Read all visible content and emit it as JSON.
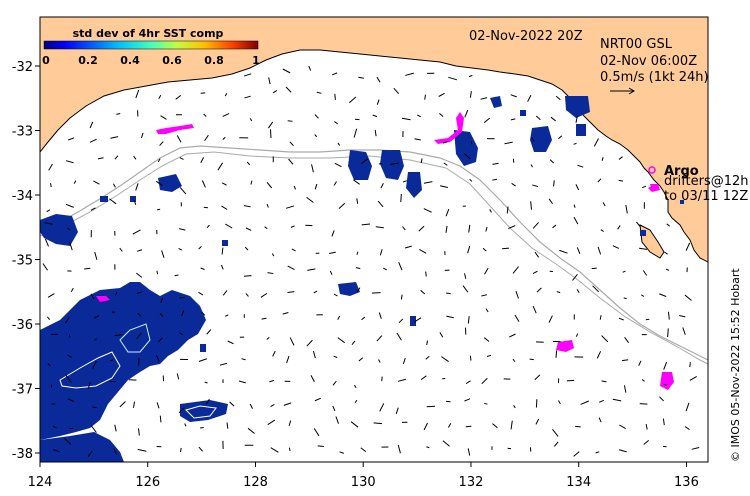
{
  "colorbar": {
    "title": "std dev of 4hr SST comp",
    "ticks": [
      "0",
      "0.2",
      "0.4",
      "0.6",
      "0.8",
      "1"
    ],
    "colors": [
      "#000080",
      "#0000ff",
      "#0080ff",
      "#00ffff",
      "#80ff80",
      "#ffff00",
      "#ff8000",
      "#ff0000",
      "#800000"
    ]
  },
  "header": {
    "date": "02-Nov-2022 20Z",
    "product": "NRT00 GSL",
    "time": "02-Nov 06:00Z",
    "scale": "0.5m/s (1kt 24h)"
  },
  "legend": {
    "argo": "Argo",
    "drifters_line1": "drifters@12h",
    "drifters_line2": "to 03/11 12Z"
  },
  "credit": "© IMOS 05-Nov-2022 15:52 Hobart",
  "axes": {
    "x_ticks": [
      "124",
      "126",
      "128",
      "130",
      "132",
      "134",
      "136"
    ],
    "y_ticks": [
      "-32",
      "-33",
      "-34",
      "-35",
      "-36",
      "-37",
      "-38"
    ]
  },
  "colors": {
    "land": "#ffcc99",
    "ocean": "#ffffff",
    "coast": "#000000",
    "shelf_contour": "#aaaaaa",
    "sst_pixels": "#0a2a9a",
    "drifters": "#ff00ff"
  }
}
